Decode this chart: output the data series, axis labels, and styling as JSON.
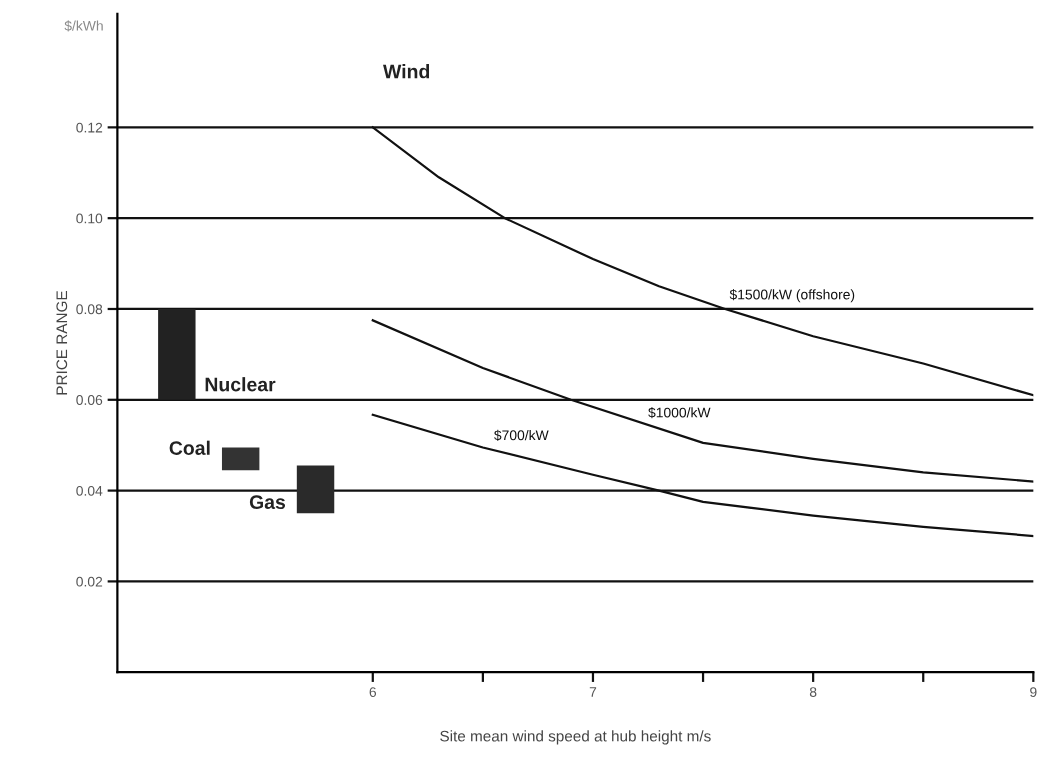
{
  "chart_data": {
    "type": "line",
    "xlabel": "Site mean wind speed at hub height m/s",
    "ylabel": "PRICE RANGE",
    "annotations": [
      "$/kWh",
      "Wind"
    ],
    "xlim": [
      4.84,
      9
    ],
    "xticks": [
      6,
      {
        "value": 6.5,
        "label": null
      },
      7,
      {
        "value": 7.5,
        "label": null
      },
      8,
      {
        "value": 8.5,
        "label": null
      },
      9
    ],
    "ylim": [
      0,
      0.145
    ],
    "yticks": [
      0.02,
      0.04,
      0.06,
      0.08,
      {
        "value": 0.1,
        "label": "0.10"
      },
      0.12
    ],
    "grid": "y",
    "legend": false,
    "marker": "none",
    "line_style": "solid",
    "series": [
      {
        "name": "Nuclear",
        "type": "bar",
        "color": "#222222",
        "x": [
          5.11
        ],
        "base": [
          0.06
        ],
        "values": [
          0.02
        ]
      },
      {
        "name": "Coal",
        "type": "bar",
        "color": "#333333",
        "x": [
          5.4
        ],
        "base": [
          0.0445
        ],
        "values": [
          0.005
        ]
      },
      {
        "name": "Gas",
        "type": "bar",
        "color": "#2a2a2a",
        "x": [
          5.74
        ],
        "base": [
          0.035
        ],
        "values": [
          0.0105
        ]
      },
      {
        "name": "$1500/kW (offshore)",
        "color": "#111111",
        "x": [
          6,
          6.3,
          6.6,
          7,
          7.3,
          7.6,
          8,
          8.5,
          9
        ],
        "values": [
          0.12,
          0.109,
          0.1,
          0.091,
          0.085,
          0.08,
          0.074,
          0.068,
          0.061
        ]
      },
      {
        "name": "$1000/kW",
        "color": "#111111",
        "x": [
          6,
          6.5,
          6.9,
          7.5,
          8,
          8.5,
          9
        ],
        "values": [
          0.0775,
          0.067,
          0.06,
          0.0505,
          0.047,
          0.044,
          0.042
        ]
      },
      {
        "name": "$700/kW",
        "color": "#111111",
        "x": [
          6,
          6.5,
          7,
          7.3,
          7.5,
          8,
          8.5,
          9
        ],
        "values": [
          0.0567,
          0.0495,
          0.0435,
          0.04,
          0.0375,
          0.0345,
          0.032,
          0.03
        ]
      }
    ]
  }
}
